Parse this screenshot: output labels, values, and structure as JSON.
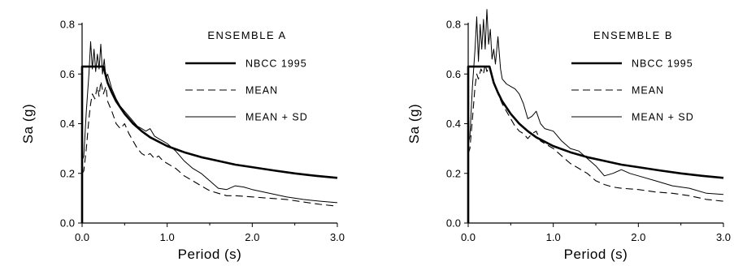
{
  "chart_data": [
    {
      "type": "line",
      "title": "ENSEMBLE A",
      "xlabel": "Period (s)",
      "ylabel": "Sa (g)",
      "xlim": [
        0,
        3
      ],
      "ylim": [
        0,
        0.8
      ],
      "xticks": [
        "0.0",
        "1.0",
        "2.0",
        "3.0"
      ],
      "yticks": [
        "0.0",
        "0.2",
        "0.4",
        "0.6",
        "0.8"
      ],
      "grid": false,
      "legend_position": "top-right",
      "series": [
        {
          "name": "NBCC 1995",
          "style": "thick-solid",
          "x": [
            0.0,
            0.0,
            0.25,
            0.3,
            0.35,
            0.4,
            0.5,
            0.6,
            0.7,
            0.8,
            1.0,
            1.2,
            1.4,
            1.6,
            1.8,
            2.0,
            2.25,
            2.5,
            2.75,
            3.0
          ],
          "y": [
            0.0,
            0.63,
            0.63,
            0.565,
            0.525,
            0.49,
            0.44,
            0.4,
            0.37,
            0.345,
            0.31,
            0.285,
            0.265,
            0.25,
            0.235,
            0.225,
            0.212,
            0.2,
            0.19,
            0.182
          ]
        },
        {
          "name": "MEAN",
          "style": "dashed",
          "x": [
            0.0,
            0.02,
            0.05,
            0.08,
            0.1,
            0.12,
            0.15,
            0.18,
            0.2,
            0.22,
            0.25,
            0.28,
            0.3,
            0.35,
            0.4,
            0.45,
            0.5,
            0.55,
            0.6,
            0.65,
            0.7,
            0.75,
            0.8,
            0.85,
            0.9,
            0.95,
            1.0,
            1.1,
            1.2,
            1.3,
            1.4,
            1.5,
            1.6,
            1.7,
            1.8,
            2.0,
            2.2,
            2.4,
            2.6,
            2.8,
            3.0
          ],
          "y": [
            0.2,
            0.21,
            0.3,
            0.42,
            0.48,
            0.52,
            0.5,
            0.55,
            0.51,
            0.57,
            0.52,
            0.55,
            0.49,
            0.45,
            0.4,
            0.38,
            0.4,
            0.36,
            0.33,
            0.3,
            0.28,
            0.27,
            0.28,
            0.26,
            0.27,
            0.25,
            0.24,
            0.22,
            0.19,
            0.17,
            0.15,
            0.13,
            0.12,
            0.11,
            0.11,
            0.105,
            0.1,
            0.095,
            0.085,
            0.075,
            0.068
          ]
        },
        {
          "name": "MEAN + SD",
          "style": "thin-solid",
          "x": [
            0.0,
            0.02,
            0.05,
            0.08,
            0.1,
            0.12,
            0.14,
            0.16,
            0.18,
            0.2,
            0.22,
            0.24,
            0.26,
            0.28,
            0.3,
            0.35,
            0.4,
            0.45,
            0.5,
            0.55,
            0.6,
            0.65,
            0.7,
            0.75,
            0.8,
            0.85,
            0.9,
            0.95,
            1.0,
            1.1,
            1.2,
            1.3,
            1.4,
            1.5,
            1.6,
            1.7,
            1.8,
            1.9,
            2.0,
            2.2,
            2.4,
            2.6,
            2.8,
            3.0
          ],
          "y": [
            0.25,
            0.27,
            0.45,
            0.6,
            0.73,
            0.62,
            0.7,
            0.61,
            0.68,
            0.62,
            0.72,
            0.6,
            0.66,
            0.58,
            0.6,
            0.54,
            0.5,
            0.47,
            0.45,
            0.43,
            0.41,
            0.39,
            0.38,
            0.37,
            0.38,
            0.35,
            0.34,
            0.33,
            0.32,
            0.29,
            0.25,
            0.22,
            0.2,
            0.17,
            0.14,
            0.135,
            0.15,
            0.145,
            0.135,
            0.12,
            0.105,
            0.095,
            0.088,
            0.082
          ]
        }
      ]
    },
    {
      "type": "line",
      "title": "ENSEMBLE B",
      "xlabel": "Period (s)",
      "ylabel": "Sa (g)",
      "xlim": [
        0,
        3
      ],
      "ylim": [
        0,
        0.8
      ],
      "xticks": [
        "0.0",
        "1.0",
        "2.0",
        "3.0"
      ],
      "yticks": [
        "0.0",
        "0.2",
        "0.4",
        "0.6",
        "0.8"
      ],
      "grid": false,
      "legend_position": "top-right",
      "series": [
        {
          "name": "NBCC 1995",
          "style": "thick-solid",
          "x": [
            0.0,
            0.0,
            0.25,
            0.3,
            0.35,
            0.4,
            0.5,
            0.6,
            0.7,
            0.8,
            1.0,
            1.2,
            1.4,
            1.6,
            1.8,
            2.0,
            2.25,
            2.5,
            2.75,
            3.0
          ],
          "y": [
            0.0,
            0.63,
            0.63,
            0.565,
            0.525,
            0.49,
            0.44,
            0.4,
            0.37,
            0.345,
            0.31,
            0.285,
            0.265,
            0.25,
            0.235,
            0.225,
            0.212,
            0.2,
            0.19,
            0.182
          ]
        },
        {
          "name": "MEAN",
          "style": "dashed",
          "x": [
            0.0,
            0.02,
            0.05,
            0.08,
            0.1,
            0.12,
            0.15,
            0.18,
            0.2,
            0.22,
            0.25,
            0.28,
            0.3,
            0.35,
            0.4,
            0.45,
            0.5,
            0.55,
            0.6,
            0.65,
            0.7,
            0.75,
            0.8,
            0.85,
            0.9,
            1.0,
            1.1,
            1.2,
            1.3,
            1.4,
            1.5,
            1.6,
            1.7,
            1.8,
            2.0,
            2.2,
            2.4,
            2.6,
            2.8,
            3.0
          ],
          "y": [
            0.28,
            0.3,
            0.42,
            0.55,
            0.6,
            0.58,
            0.62,
            0.6,
            0.64,
            0.61,
            0.63,
            0.6,
            0.57,
            0.52,
            0.48,
            0.45,
            0.42,
            0.39,
            0.37,
            0.36,
            0.34,
            0.36,
            0.37,
            0.33,
            0.32,
            0.3,
            0.27,
            0.24,
            0.22,
            0.2,
            0.17,
            0.155,
            0.145,
            0.14,
            0.135,
            0.125,
            0.12,
            0.11,
            0.095,
            0.088
          ]
        },
        {
          "name": "MEAN + SD",
          "style": "thin-solid",
          "x": [
            0.0,
            0.02,
            0.05,
            0.08,
            0.1,
            0.12,
            0.14,
            0.16,
            0.18,
            0.2,
            0.22,
            0.24,
            0.26,
            0.28,
            0.3,
            0.32,
            0.35,
            0.38,
            0.4,
            0.45,
            0.5,
            0.55,
            0.6,
            0.65,
            0.7,
            0.75,
            0.8,
            0.85,
            0.9,
            1.0,
            1.1,
            1.2,
            1.3,
            1.4,
            1.5,
            1.6,
            1.7,
            1.8,
            1.9,
            2.0,
            2.2,
            2.4,
            2.6,
            2.8,
            3.0
          ],
          "y": [
            0.32,
            0.35,
            0.55,
            0.7,
            0.83,
            0.65,
            0.8,
            0.7,
            0.82,
            0.7,
            0.86,
            0.72,
            0.78,
            0.66,
            0.7,
            0.64,
            0.75,
            0.62,
            0.58,
            0.56,
            0.55,
            0.54,
            0.52,
            0.48,
            0.42,
            0.43,
            0.45,
            0.4,
            0.38,
            0.37,
            0.33,
            0.3,
            0.29,
            0.26,
            0.23,
            0.19,
            0.2,
            0.215,
            0.2,
            0.19,
            0.17,
            0.15,
            0.14,
            0.12,
            0.115
          ]
        }
      ]
    }
  ]
}
